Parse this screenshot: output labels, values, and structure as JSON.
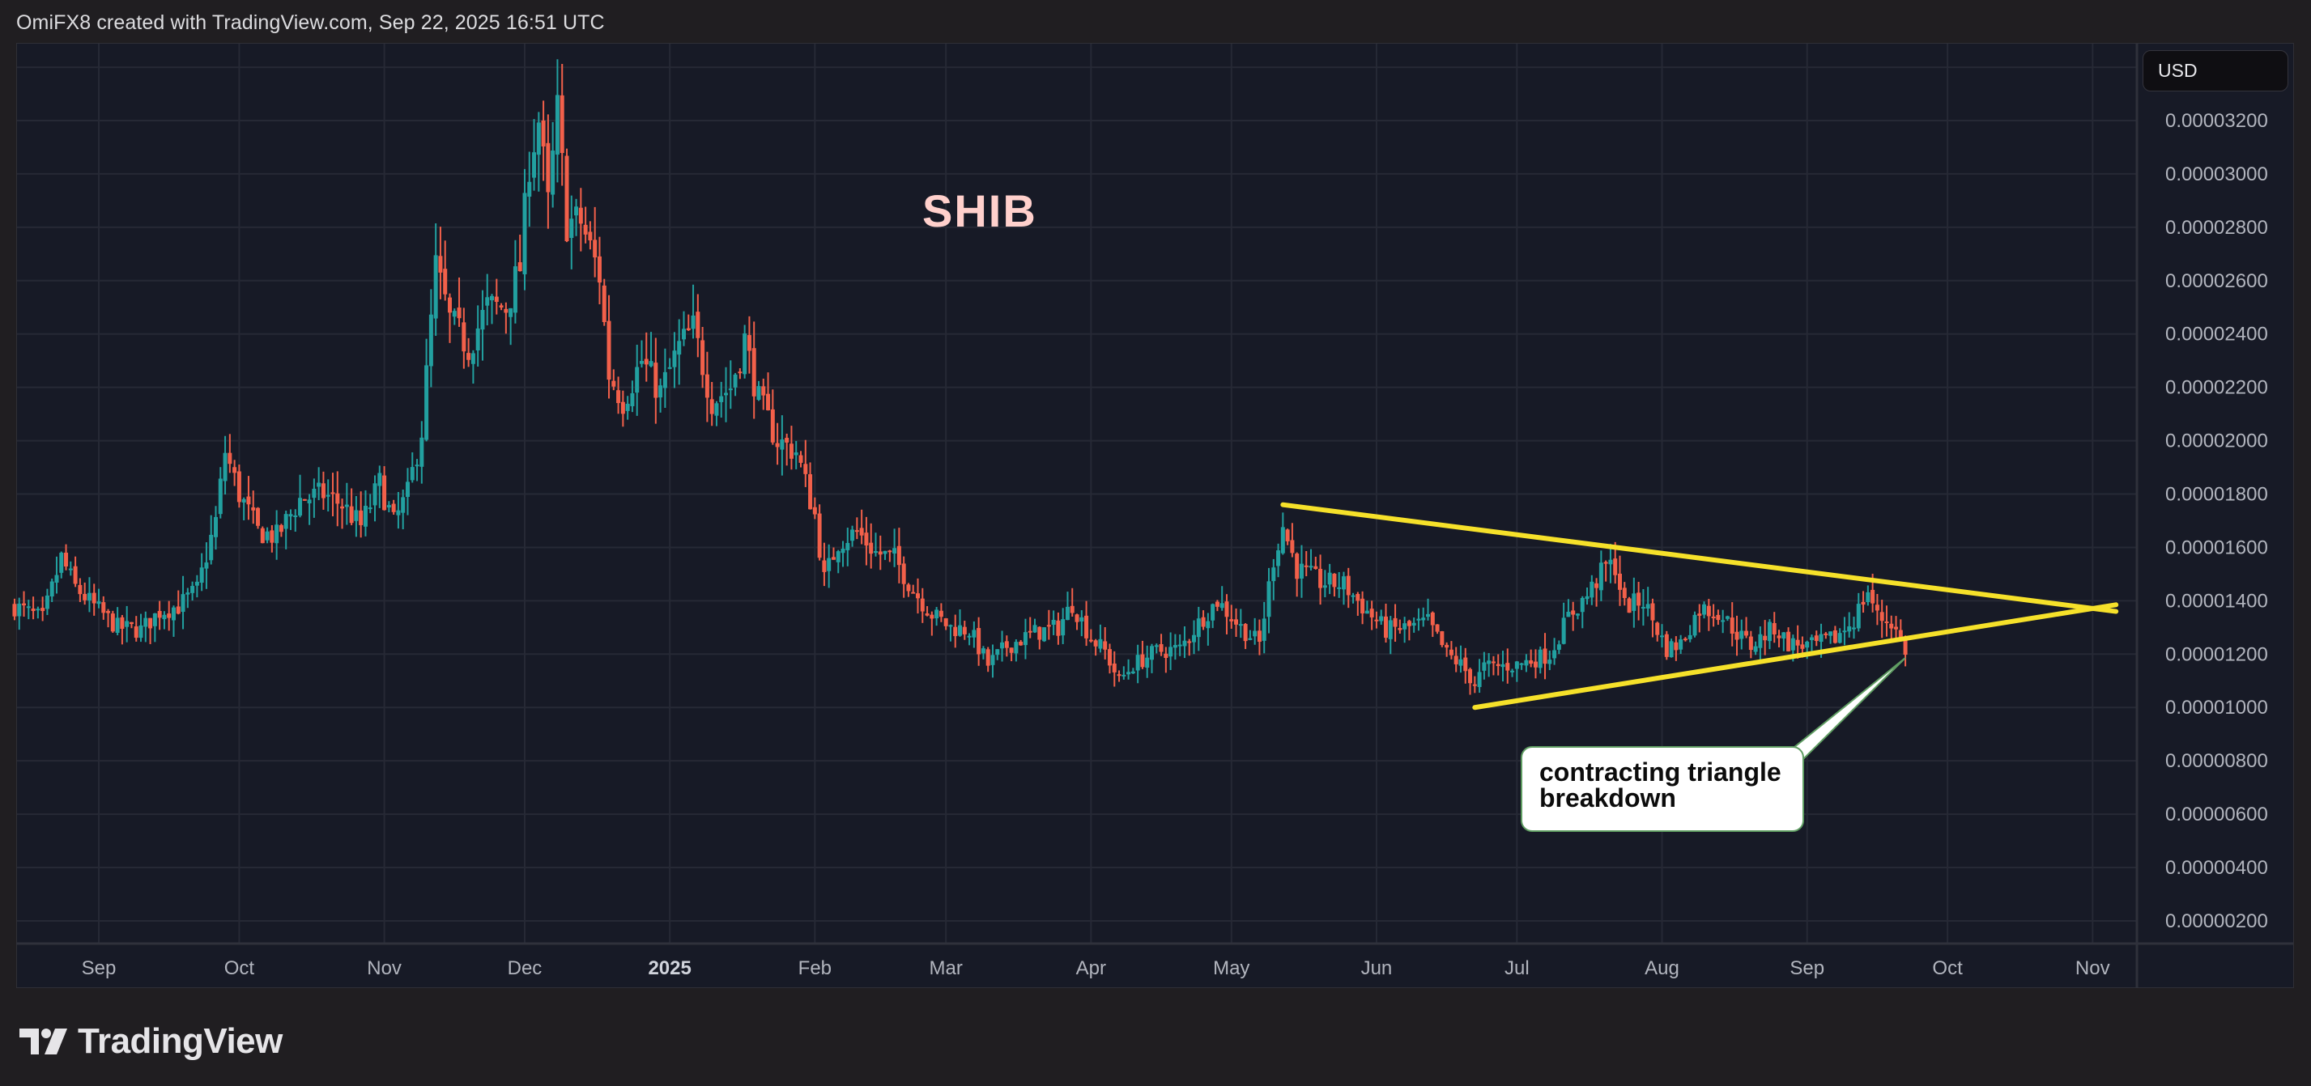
{
  "header": {
    "credit": "OmiFX8 created with TradingView.com, Sep 22, 2025 16:51 UTC"
  },
  "chart": {
    "symbol_label": "SHIB",
    "currency_button": "USD",
    "annotation": {
      "line1": "contracting triangle",
      "line2": "breakdown"
    },
    "colors": {
      "background": "#171a26",
      "page": "#201e21",
      "grid": "#262935",
      "up": "#22a0a0",
      "down": "#f2604a",
      "trendline": "#f6e12a",
      "axis_text": "#b2b5be",
      "symbol": "#ffd0cc",
      "annotation_border": "#5f9d62"
    }
  },
  "footer": {
    "brand": "TradingView"
  },
  "chart_data": {
    "type": "candlestick",
    "title": "SHIB",
    "xlabel": "",
    "ylabel": "USD",
    "ylim": [
      1.5e-06,
      3.45e-05
    ],
    "grid": true,
    "y_ticks": [
      "0.00003200",
      "0.00003000",
      "0.00002800",
      "0.00002600",
      "0.00002400",
      "0.00002200",
      "0.00002000",
      "0.00001800",
      "0.00001600",
      "0.00001400",
      "0.00001200",
      "0.00001000",
      "0.00000800",
      "0.00000600",
      "0.00000400",
      "0.00000200"
    ],
    "x_ticks": [
      {
        "label": "Sep",
        "date": "2024-09-01",
        "bold": false
      },
      {
        "label": "Oct",
        "date": "2024-10-01",
        "bold": false
      },
      {
        "label": "Nov",
        "date": "2024-11-01",
        "bold": false
      },
      {
        "label": "Dec",
        "date": "2024-12-01",
        "bold": false
      },
      {
        "label": "2025",
        "date": "2025-01-01",
        "bold": true
      },
      {
        "label": "Feb",
        "date": "2025-02-01",
        "bold": false
      },
      {
        "label": "Mar",
        "date": "2025-03-01",
        "bold": false
      },
      {
        "label": "Apr",
        "date": "2025-04-01",
        "bold": false
      },
      {
        "label": "May",
        "date": "2025-05-01",
        "bold": false
      },
      {
        "label": "Jun",
        "date": "2025-06-01",
        "bold": false
      },
      {
        "label": "Jul",
        "date": "2025-07-01",
        "bold": false
      },
      {
        "label": "Aug",
        "date": "2025-08-01",
        "bold": false
      },
      {
        "label": "Sep",
        "date": "2025-09-01",
        "bold": false
      },
      {
        "label": "Oct",
        "date": "2025-10-01",
        "bold": false
      },
      {
        "label": "Nov",
        "date": "2025-11-01",
        "bold": false
      }
    ],
    "price_unit": "1e-8 USD",
    "close_waypoints": [
      [
        "2024-08-14",
        1380
      ],
      [
        "2024-08-20",
        1330
      ],
      [
        "2024-08-24",
        1560
      ],
      [
        "2024-08-27",
        1450
      ],
      [
        "2024-08-31",
        1380
      ],
      [
        "2024-09-05",
        1300
      ],
      [
        "2024-09-10",
        1290
      ],
      [
        "2024-09-14",
        1360
      ],
      [
        "2024-09-18",
        1380
      ],
      [
        "2024-09-22",
        1440
      ],
      [
        "2024-09-26",
        1700
      ],
      [
        "2024-09-28",
        1960
      ],
      [
        "2024-10-01",
        1800
      ],
      [
        "2024-10-05",
        1660
      ],
      [
        "2024-10-09",
        1640
      ],
      [
        "2024-10-14",
        1780
      ],
      [
        "2024-10-19",
        1800
      ],
      [
        "2024-10-23",
        1760
      ],
      [
        "2024-10-27",
        1680
      ],
      [
        "2024-10-31",
        1840
      ],
      [
        "2024-11-03",
        1690
      ],
      [
        "2024-11-06",
        1800
      ],
      [
        "2024-11-09",
        2040
      ],
      [
        "2024-11-12",
        2650
      ],
      [
        "2024-11-15",
        2450
      ],
      [
        "2024-11-19",
        2350
      ],
      [
        "2024-11-23",
        2500
      ],
      [
        "2024-11-27",
        2500
      ],
      [
        "2024-11-30",
        2650
      ],
      [
        "2024-12-02",
        3050
      ],
      [
        "2024-12-04",
        3200
      ],
      [
        "2024-12-06",
        2880
      ],
      [
        "2024-12-08",
        3230
      ],
      [
        "2024-12-10",
        2820
      ],
      [
        "2024-12-13",
        2820
      ],
      [
        "2024-12-17",
        2620
      ],
      [
        "2024-12-19",
        2250
      ],
      [
        "2024-12-22",
        2150
      ],
      [
        "2024-12-26",
        2300
      ],
      [
        "2024-12-30",
        2180
      ],
      [
        "2025-01-03",
        2350
      ],
      [
        "2025-01-06",
        2420
      ],
      [
        "2025-01-10",
        2150
      ],
      [
        "2025-01-14",
        2200
      ],
      [
        "2025-01-17",
        2380
      ],
      [
        "2025-01-20",
        2150
      ],
      [
        "2025-01-24",
        2000
      ],
      [
        "2025-01-28",
        1960
      ],
      [
        "2025-02-01",
        1720
      ],
      [
        "2025-02-03",
        1480
      ],
      [
        "2025-02-06",
        1620
      ],
      [
        "2025-02-10",
        1660
      ],
      [
        "2025-02-14",
        1580
      ],
      [
        "2025-02-18",
        1560
      ],
      [
        "2025-02-22",
        1440
      ],
      [
        "2025-02-26",
        1350
      ],
      [
        "2025-03-02",
        1300
      ],
      [
        "2025-03-06",
        1290
      ],
      [
        "2025-03-10",
        1160
      ],
      [
        "2025-03-14",
        1230
      ],
      [
        "2025-03-20",
        1280
      ],
      [
        "2025-03-25",
        1300
      ],
      [
        "2025-03-28",
        1390
      ],
      [
        "2025-04-01",
        1260
      ],
      [
        "2025-04-04",
        1210
      ],
      [
        "2025-04-07",
        1100
      ],
      [
        "2025-04-10",
        1160
      ],
      [
        "2025-04-15",
        1210
      ],
      [
        "2025-04-20",
        1220
      ],
      [
        "2025-04-25",
        1340
      ],
      [
        "2025-04-28",
        1400
      ],
      [
        "2025-05-03",
        1300
      ],
      [
        "2025-05-07",
        1240
      ],
      [
        "2025-05-10",
        1560
      ],
      [
        "2025-05-12",
        1680
      ],
      [
        "2025-05-15",
        1520
      ],
      [
        "2025-05-20",
        1470
      ],
      [
        "2025-05-25",
        1460
      ],
      [
        "2025-05-30",
        1360
      ],
      [
        "2025-06-03",
        1290
      ],
      [
        "2025-06-08",
        1300
      ],
      [
        "2025-06-12",
        1320
      ],
      [
        "2025-06-16",
        1200
      ],
      [
        "2025-06-19",
        1160
      ],
      [
        "2025-06-22",
        1090
      ],
      [
        "2025-06-24",
        1150
      ],
      [
        "2025-07-01",
        1160
      ],
      [
        "2025-07-08",
        1200
      ],
      [
        "2025-07-12",
        1340
      ],
      [
        "2025-07-16",
        1420
      ],
      [
        "2025-07-20",
        1530
      ],
      [
        "2025-07-22",
        1530
      ],
      [
        "2025-07-24",
        1380
      ],
      [
        "2025-07-28",
        1400
      ],
      [
        "2025-08-02",
        1220
      ],
      [
        "2025-08-05",
        1240
      ],
      [
        "2025-08-09",
        1370
      ],
      [
        "2025-08-13",
        1360
      ],
      [
        "2025-08-17",
        1280
      ],
      [
        "2025-08-20",
        1230
      ],
      [
        "2025-08-25",
        1300
      ],
      [
        "2025-08-28",
        1240
      ],
      [
        "2025-09-02",
        1230
      ],
      [
        "2025-09-07",
        1260
      ],
      [
        "2025-09-11",
        1330
      ],
      [
        "2025-09-14",
        1440
      ],
      [
        "2025-09-16",
        1340
      ],
      [
        "2025-09-19",
        1320
      ],
      [
        "2025-09-22",
        1215
      ]
    ],
    "annotations": [
      {
        "type": "trendline",
        "name": "upper",
        "from": [
          "2025-05-12",
          1760
        ],
        "to": [
          "2025-11-06",
          1360
        ]
      },
      {
        "type": "trendline",
        "name": "lower",
        "from": [
          "2025-06-22",
          1000
        ],
        "to": [
          "2025-11-06",
          1385
        ]
      },
      {
        "type": "callout",
        "text": "contracting triangle breakdown",
        "anchor": [
          "2025-09-22",
          1180
        ]
      },
      {
        "type": "text",
        "text": "SHIB"
      }
    ]
  }
}
